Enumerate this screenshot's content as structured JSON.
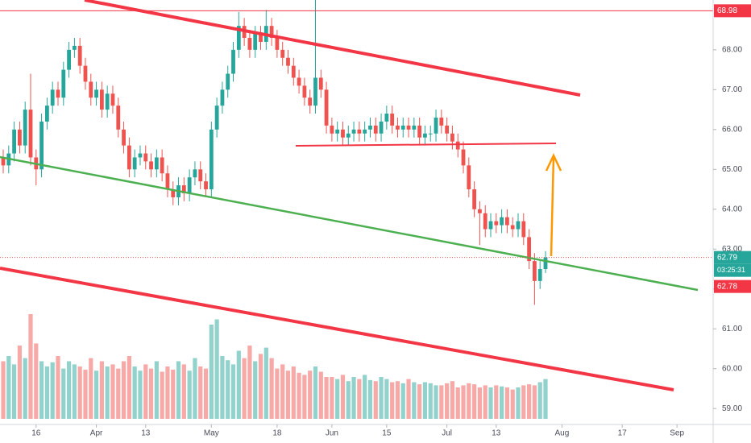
{
  "chart_data": {
    "type": "candlestick",
    "xlim": [
      -0.59,
      129.6
    ],
    "ylim": [
      58.6,
      69.25
    ],
    "xticks": [
      {
        "value": 6,
        "label": "16"
      },
      {
        "value": 17,
        "label": "Apr"
      },
      {
        "value": 26,
        "label": "13"
      },
      {
        "value": 38,
        "label": "May"
      },
      {
        "value": 50,
        "label": "18"
      },
      {
        "value": 60,
        "label": "Jun"
      },
      {
        "value": 70,
        "label": "15"
      },
      {
        "value": 81,
        "label": "Jul"
      },
      {
        "value": 90,
        "label": "13"
      },
      {
        "value": 102,
        "label": "Aug"
      },
      {
        "value": 113,
        "label": "17"
      },
      {
        "value": 123,
        "label": "Sep"
      }
    ],
    "yticks": [
      {
        "value": 59,
        "label": "59.00"
      },
      {
        "value": 60,
        "label": "60.00"
      },
      {
        "value": 61,
        "label": "61.00"
      },
      {
        "value": 62,
        "label": "62.00"
      },
      {
        "value": 63,
        "label": "63.00"
      },
      {
        "value": 64,
        "label": "64.00"
      },
      {
        "value": 65,
        "label": "65.00"
      },
      {
        "value": 66,
        "label": "66.00"
      },
      {
        "value": 67,
        "label": "67.00"
      },
      {
        "value": 68,
        "label": "68.00"
      }
    ],
    "up_color": "#26a69a",
    "down_color": "#ef5350",
    "open": [
      65.3,
      65.1,
      65.4,
      66.0,
      65.6,
      66.5,
      65.3,
      65.0,
      66.2,
      66.6,
      67.0,
      66.8,
      67.5,
      68.0,
      68.1,
      67.6,
      67.2,
      66.8,
      67.0,
      66.5,
      66.9,
      66.6,
      66.0,
      65.6,
      65.0,
      65.3,
      65.4,
      65.2,
      65.0,
      65.3,
      64.9,
      64.5,
      64.3,
      64.6,
      64.4,
      64.8,
      65.0,
      64.7,
      64.5,
      66.0,
      66.6,
      67.0,
      67.4,
      68.0,
      68.6,
      68.3,
      68.0,
      68.4,
      68.2,
      68.6,
      68.3,
      68.0,
      67.8,
      67.6,
      67.3,
      67.1,
      66.8,
      66.6,
      67.3,
      67.0,
      66.1,
      65.9,
      66.0,
      65.8,
      65.9,
      66.0,
      65.9,
      66.0,
      66.1,
      65.9,
      66.2,
      66.4,
      66.1,
      66.0,
      66.1,
      66.0,
      66.1,
      65.8,
      65.9,
      65.9,
      66.3,
      66.1,
      65.9,
      65.7,
      65.5,
      65.1,
      64.5,
      64.0,
      63.9,
      63.5,
      63.7,
      63.6,
      63.8,
      63.6,
      63.5,
      63.7,
      63.3,
      62.7,
      62.2,
      62.5
    ],
    "high": [
      65.5,
      65.6,
      66.2,
      66.2,
      66.7,
      67.4,
      65.5,
      66.4,
      66.8,
      67.2,
      67.2,
      67.7,
      68.2,
      68.3,
      68.3,
      67.8,
      67.4,
      67.2,
      67.2,
      67.1,
      67.1,
      66.8,
      66.2,
      65.8,
      65.5,
      65.6,
      65.6,
      65.4,
      65.5,
      65.5,
      65.1,
      64.7,
      64.8,
      64.8,
      65.0,
      65.2,
      65.2,
      64.9,
      66.2,
      66.8,
      67.2,
      67.6,
      68.2,
      68.95,
      68.8,
      68.5,
      68.6,
      68.6,
      69.0,
      68.8,
      68.5,
      68.2,
      68.0,
      67.8,
      67.5,
      67.3,
      67.0,
      69.25,
      67.5,
      67.2,
      66.3,
      66.2,
      66.2,
      66.1,
      66.2,
      66.2,
      66.2,
      66.3,
      66.3,
      66.4,
      66.6,
      66.6,
      66.3,
      66.3,
      66.3,
      66.3,
      66.3,
      66.1,
      66.1,
      66.5,
      66.5,
      66.3,
      66.1,
      65.9,
      65.7,
      65.3,
      64.7,
      64.2,
      64.1,
      63.9,
      63.9,
      64.0,
      64.0,
      63.8,
      63.9,
      63.9,
      63.5,
      62.9,
      62.7,
      62.95
    ],
    "low": [
      64.9,
      64.9,
      65.2,
      65.4,
      65.4,
      65.1,
      64.6,
      64.8,
      66.0,
      66.4,
      66.6,
      66.6,
      67.3,
      67.8,
      67.4,
      67.0,
      66.6,
      66.6,
      66.3,
      66.3,
      66.4,
      65.8,
      65.4,
      64.8,
      64.8,
      65.1,
      65.0,
      64.8,
      64.8,
      64.7,
      64.3,
      64.1,
      64.1,
      64.2,
      64.2,
      64.6,
      64.5,
      64.3,
      64.3,
      65.8,
      66.4,
      66.8,
      67.2,
      67.8,
      68.1,
      67.8,
      67.8,
      68.0,
      68.0,
      68.1,
      67.8,
      67.6,
      67.4,
      67.1,
      66.9,
      66.6,
      66.4,
      66.4,
      66.8,
      65.9,
      65.7,
      65.7,
      65.6,
      65.6,
      65.7,
      65.7,
      65.7,
      65.8,
      65.7,
      65.7,
      66.0,
      65.9,
      65.8,
      65.8,
      65.8,
      65.8,
      65.6,
      65.6,
      65.7,
      65.7,
      65.9,
      65.7,
      65.5,
      65.3,
      64.9,
      64.3,
      63.8,
      63.1,
      63.3,
      63.3,
      63.4,
      63.4,
      63.4,
      63.3,
      63.3,
      63.1,
      62.5,
      61.6,
      62.0,
      62.4
    ],
    "close": [
      65.1,
      65.4,
      66.0,
      65.6,
      66.5,
      65.3,
      65.0,
      66.2,
      66.6,
      67.0,
      66.8,
      67.5,
      68.0,
      68.1,
      67.6,
      67.2,
      66.8,
      67.0,
      66.5,
      66.9,
      66.6,
      66.0,
      65.6,
      65.0,
      65.3,
      65.4,
      65.2,
      65.0,
      65.3,
      64.9,
      64.5,
      64.3,
      64.6,
      64.4,
      64.8,
      65.0,
      64.7,
      64.5,
      66.0,
      66.6,
      67.0,
      67.4,
      68.0,
      68.6,
      68.3,
      68.0,
      68.4,
      68.2,
      68.6,
      68.3,
      68.0,
      67.8,
      67.6,
      67.3,
      67.1,
      66.8,
      66.6,
      67.3,
      67.0,
      66.1,
      65.9,
      66.0,
      65.8,
      65.9,
      66.0,
      65.9,
      66.0,
      66.1,
      65.9,
      66.2,
      66.4,
      66.1,
      66.0,
      66.1,
      66.0,
      66.1,
      65.8,
      65.9,
      65.9,
      66.3,
      66.1,
      65.9,
      65.7,
      65.5,
      65.1,
      64.5,
      64.0,
      63.9,
      63.5,
      63.7,
      63.6,
      63.8,
      63.6,
      63.5,
      63.7,
      63.3,
      62.7,
      62.2,
      62.5,
      62.79
    ],
    "volume": [
      55,
      60,
      52,
      70,
      58,
      100,
      72,
      55,
      50,
      54,
      60,
      48,
      55,
      52,
      50,
      47,
      58,
      46,
      55,
      50,
      52,
      48,
      55,
      60,
      50,
      46,
      52,
      48,
      55,
      45,
      50,
      47,
      55,
      52,
      46,
      58,
      50,
      48,
      90,
      95,
      60,
      56,
      52,
      65,
      58,
      70,
      55,
      62,
      68,
      58,
      48,
      52,
      46,
      50,
      44,
      42,
      46,
      50,
      45,
      40,
      40,
      38,
      42,
      36,
      40,
      38,
      42,
      37,
      36,
      40,
      38,
      35,
      36,
      34,
      38,
      35,
      33,
      35,
      34,
      32,
      32,
      34,
      36,
      30,
      32,
      34,
      33,
      30,
      32,
      30,
      32,
      31,
      30,
      28,
      30,
      32,
      33,
      32,
      35,
      38
    ],
    "volume_lim": [
      0,
      100
    ],
    "high_line": 68.98,
    "last_price": 62.79,
    "countdown": "03:25:31",
    "bid": 62.78
  }
}
